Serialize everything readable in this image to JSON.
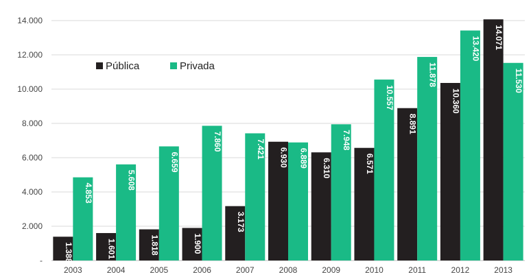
{
  "chart_data": {
    "type": "bar",
    "categories": [
      "2003",
      "2004",
      "2005",
      "2006",
      "2007",
      "2008",
      "2009",
      "2010",
      "2011",
      "2012",
      "2013"
    ],
    "series": [
      {
        "name": "Pública",
        "color": "#231f20",
        "values": [
          1388,
          1601,
          1818,
          1900,
          3173,
          6930,
          6310,
          6571,
          8891,
          10360,
          14071
        ],
        "labels": [
          "1.388",
          "1.601",
          "1.818",
          "1.900",
          "3.173",
          "6.930",
          "6.310",
          "6.571",
          "8.891",
          "10.360",
          "14.071"
        ]
      },
      {
        "name": "Privada",
        "color": "#1aba86",
        "values": [
          4853,
          5608,
          6659,
          7860,
          7421,
          6889,
          7948,
          10557,
          11878,
          13420,
          11530
        ],
        "labels": [
          "4.853",
          "5.608",
          "6.659",
          "7.860",
          "7.421",
          "6.889",
          "7.948",
          "10.557",
          "11.878",
          "13.420",
          "11.530"
        ]
      }
    ],
    "ylim": [
      0,
      14000
    ],
    "yticks": [
      0,
      2000,
      4000,
      6000,
      8000,
      10000,
      12000,
      14000
    ],
    "ytick_labels": [
      "-",
      "2.000",
      "4.000",
      "6.000",
      "8.000",
      "10.000",
      "12.000",
      "14.000"
    ],
    "title": "",
    "xlabel": "",
    "ylabel": "",
    "grid": true,
    "legend_position": "top-left"
  }
}
